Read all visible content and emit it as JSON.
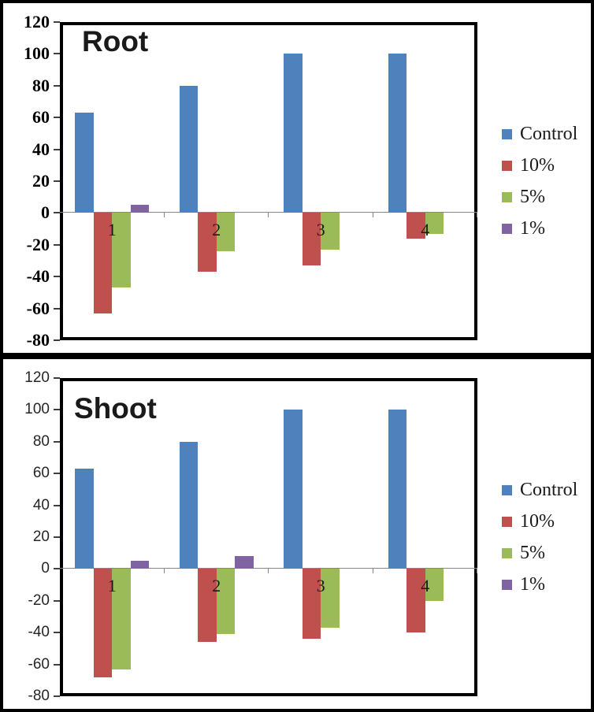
{
  "figure": {
    "background": "#ffffff",
    "border_color": "#000000"
  },
  "chart_data": [
    {
      "type": "bar",
      "title": "Root",
      "categories": [
        "1",
        "2",
        "3",
        "4"
      ],
      "series": [
        {
          "name": "Control",
          "color": "#4F81BD",
          "values": [
            63,
            80,
            100,
            100
          ]
        },
        {
          "name": "10%",
          "color": "#C0504D",
          "values": [
            -63,
            -37,
            -33,
            -16
          ]
        },
        {
          "name": "5%",
          "color": "#9BBB59",
          "values": [
            -47,
            -24,
            -23,
            -13
          ]
        },
        {
          "name": "1%",
          "color": "#8064A2",
          "values": [
            5,
            0,
            0,
            0
          ]
        }
      ],
      "ylim": [
        -80,
        120
      ],
      "yticks": [
        120,
        100,
        80,
        60,
        40,
        20,
        0,
        -20,
        -40,
        -60,
        -80
      ],
      "xlabel": "",
      "ylabel": "",
      "grid": false,
      "legend_position": "right",
      "axis_label_style": "bold-serif"
    },
    {
      "type": "bar",
      "title": "Shoot",
      "categories": [
        "1",
        "2",
        "3",
        "4"
      ],
      "series": [
        {
          "name": "Control",
          "color": "#4F81BD",
          "values": [
            63,
            80,
            100,
            100
          ]
        },
        {
          "name": "10%",
          "color": "#C0504D",
          "values": [
            -68,
            -46,
            -44,
            -40
          ]
        },
        {
          "name": "5%",
          "color": "#9BBB59",
          "values": [
            -63,
            -41,
            -37,
            -20
          ]
        },
        {
          "name": "1%",
          "color": "#8064A2",
          "values": [
            5,
            8,
            0,
            0
          ]
        }
      ],
      "ylim": [
        -80,
        120
      ],
      "yticks": [
        120,
        100,
        80,
        60,
        40,
        20,
        0,
        -20,
        -40,
        -60,
        -80
      ],
      "xlabel": "",
      "ylabel": "",
      "grid": false,
      "legend_position": "right",
      "axis_label_style": "regular-sans"
    }
  ]
}
